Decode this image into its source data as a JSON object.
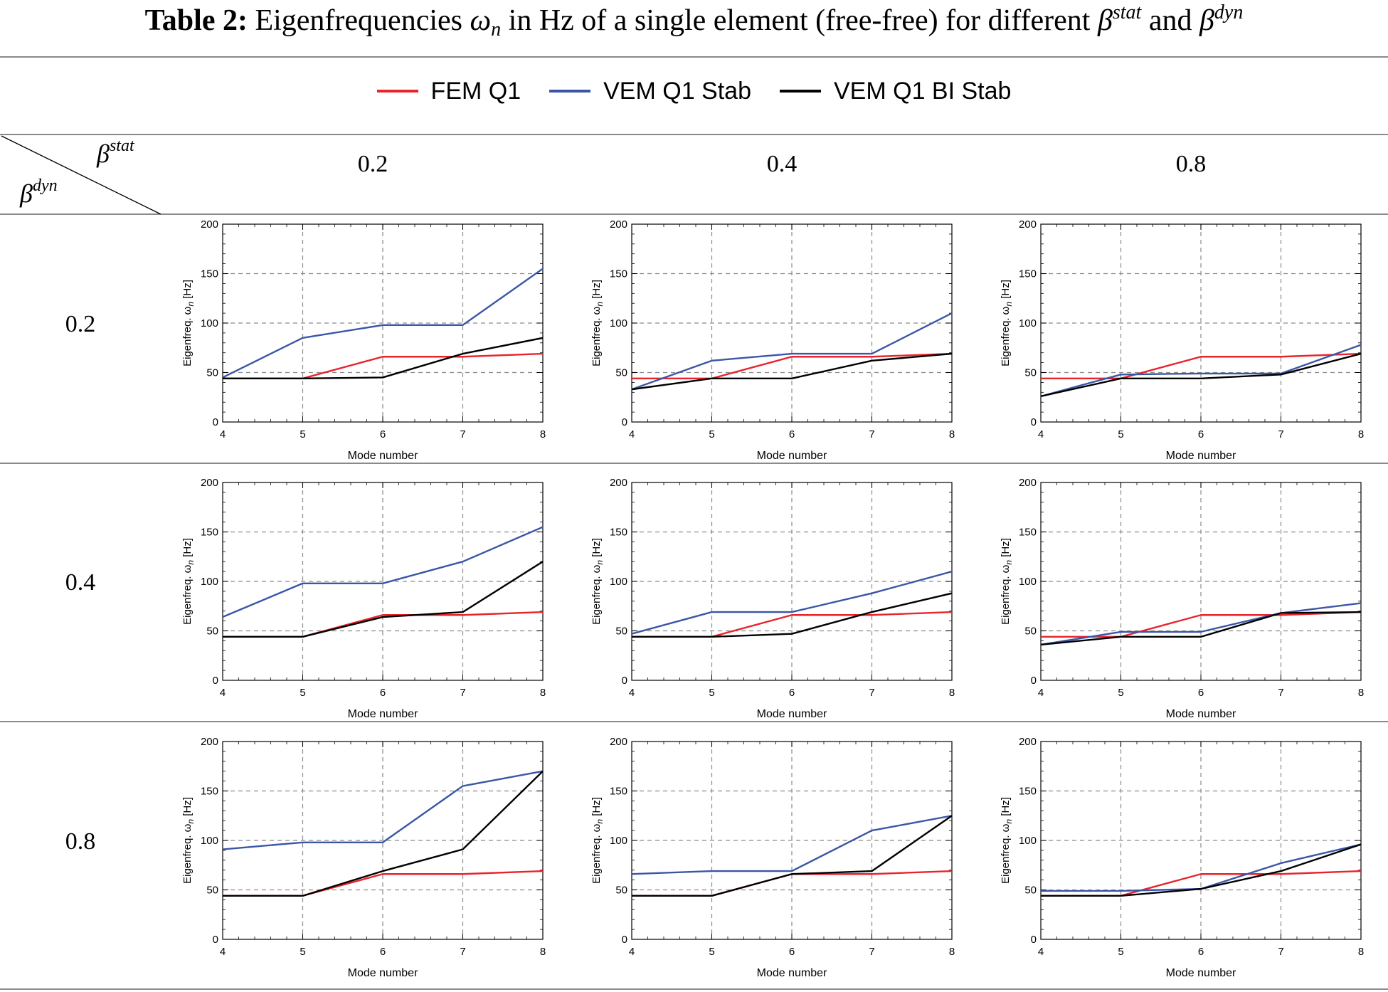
{
  "caption": {
    "label": "Table 2:",
    "text_before": "Eigenfrequencies",
    "omega": "ω",
    "omega_sub": "n",
    "text_after": "in Hz of a single element (free-free) for different",
    "beta": "β",
    "stat_sup": "stat",
    "and": "and",
    "dyn_sup": "dyn"
  },
  "header": {
    "beta_stat_label": "β",
    "beta_stat_sup": "stat",
    "beta_dyn_label": "β",
    "beta_dyn_sup": "dyn",
    "columns": [
      "0.2",
      "0.4",
      "0.8"
    ],
    "rows": [
      "0.2",
      "0.4",
      "0.8"
    ]
  },
  "colors": {
    "fem_q1": "#e8242c",
    "vem_q1_stab": "#3a56a6",
    "vem_q1_bi_stab": "#000000",
    "grid": "#8a8a8a",
    "rule": "#444444"
  },
  "chart_data": {
    "type": "line",
    "legend": [
      {
        "name": "FEM Q1",
        "color": "#e8242c"
      },
      {
        "name": "VEM Q1 Stab",
        "color": "#3a56a6"
      },
      {
        "name": "VEM Q1 BI Stab",
        "color": "#000000"
      }
    ],
    "legend_placement": "top-center",
    "xlabel": "Mode number",
    "ylabel": "Eigenfreq. ω",
    "ylabel_sub": "n",
    "ylabel_unit": "[Hz]",
    "x": [
      4,
      5,
      6,
      7,
      8
    ],
    "xlim": [
      4,
      8
    ],
    "ylim": [
      0,
      200
    ],
    "xticks": [
      4,
      5,
      6,
      7,
      8
    ],
    "yticks": [
      0,
      50,
      100,
      150,
      200
    ],
    "grid": true,
    "panels": [
      {
        "beta_dyn": "0.2",
        "beta_stat": "0.2",
        "series": {
          "FEM Q1": [
            44,
            44,
            66,
            66,
            69
          ],
          "VEM Q1 Stab": [
            45,
            85,
            98,
            98,
            155
          ],
          "VEM Q1 BI Stab": [
            44,
            44,
            45,
            69,
            85
          ]
        }
      },
      {
        "beta_dyn": "0.2",
        "beta_stat": "0.4",
        "series": {
          "FEM Q1": [
            44,
            44,
            66,
            66,
            69
          ],
          "VEM Q1 Stab": [
            33,
            62,
            69,
            69,
            110
          ],
          "VEM Q1 BI Stab": [
            33,
            44,
            44,
            62,
            69
          ]
        }
      },
      {
        "beta_dyn": "0.2",
        "beta_stat": "0.8",
        "series": {
          "FEM Q1": [
            44,
            44,
            66,
            66,
            69
          ],
          "VEM Q1 Stab": [
            26,
            48,
            49,
            49,
            78
          ],
          "VEM Q1 BI Stab": [
            26,
            44,
            44,
            48,
            69
          ]
        }
      },
      {
        "beta_dyn": "0.4",
        "beta_stat": "0.2",
        "series": {
          "FEM Q1": [
            44,
            44,
            66,
            66,
            69
          ],
          "VEM Q1 Stab": [
            64,
            98,
            98,
            120,
            155
          ],
          "VEM Q1 BI Stab": [
            44,
            44,
            64,
            69,
            120
          ]
        }
      },
      {
        "beta_dyn": "0.4",
        "beta_stat": "0.4",
        "series": {
          "FEM Q1": [
            44,
            44,
            66,
            66,
            69
          ],
          "VEM Q1 Stab": [
            47,
            69,
            69,
            88,
            110
          ],
          "VEM Q1 BI Stab": [
            44,
            44,
            47,
            69,
            88
          ]
        }
      },
      {
        "beta_dyn": "0.4",
        "beta_stat": "0.8",
        "series": {
          "FEM Q1": [
            44,
            44,
            66,
            66,
            69
          ],
          "VEM Q1 Stab": [
            36,
            49,
            49,
            68,
            78
          ],
          "VEM Q1 BI Stab": [
            36,
            44,
            44,
            68,
            69
          ]
        }
      },
      {
        "beta_dyn": "0.8",
        "beta_stat": "0.2",
        "series": {
          "FEM Q1": [
            44,
            44,
            66,
            66,
            69
          ],
          "VEM Q1 Stab": [
            91,
            98,
            98,
            155,
            170
          ],
          "VEM Q1 BI Stab": [
            44,
            44,
            69,
            91,
            170
          ]
        }
      },
      {
        "beta_dyn": "0.8",
        "beta_stat": "0.4",
        "series": {
          "FEM Q1": [
            44,
            44,
            66,
            66,
            69
          ],
          "VEM Q1 Stab": [
            66,
            69,
            69,
            110,
            125
          ],
          "VEM Q1 BI Stab": [
            44,
            44,
            66,
            69,
            125
          ]
        }
      },
      {
        "beta_dyn": "0.8",
        "beta_stat": "0.8",
        "series": {
          "FEM Q1": [
            44,
            44,
            66,
            66,
            69
          ],
          "VEM Q1 Stab": [
            49,
            49,
            51,
            77,
            96
          ],
          "VEM Q1 BI Stab": [
            44,
            44,
            51,
            69,
            96
          ]
        }
      }
    ]
  }
}
